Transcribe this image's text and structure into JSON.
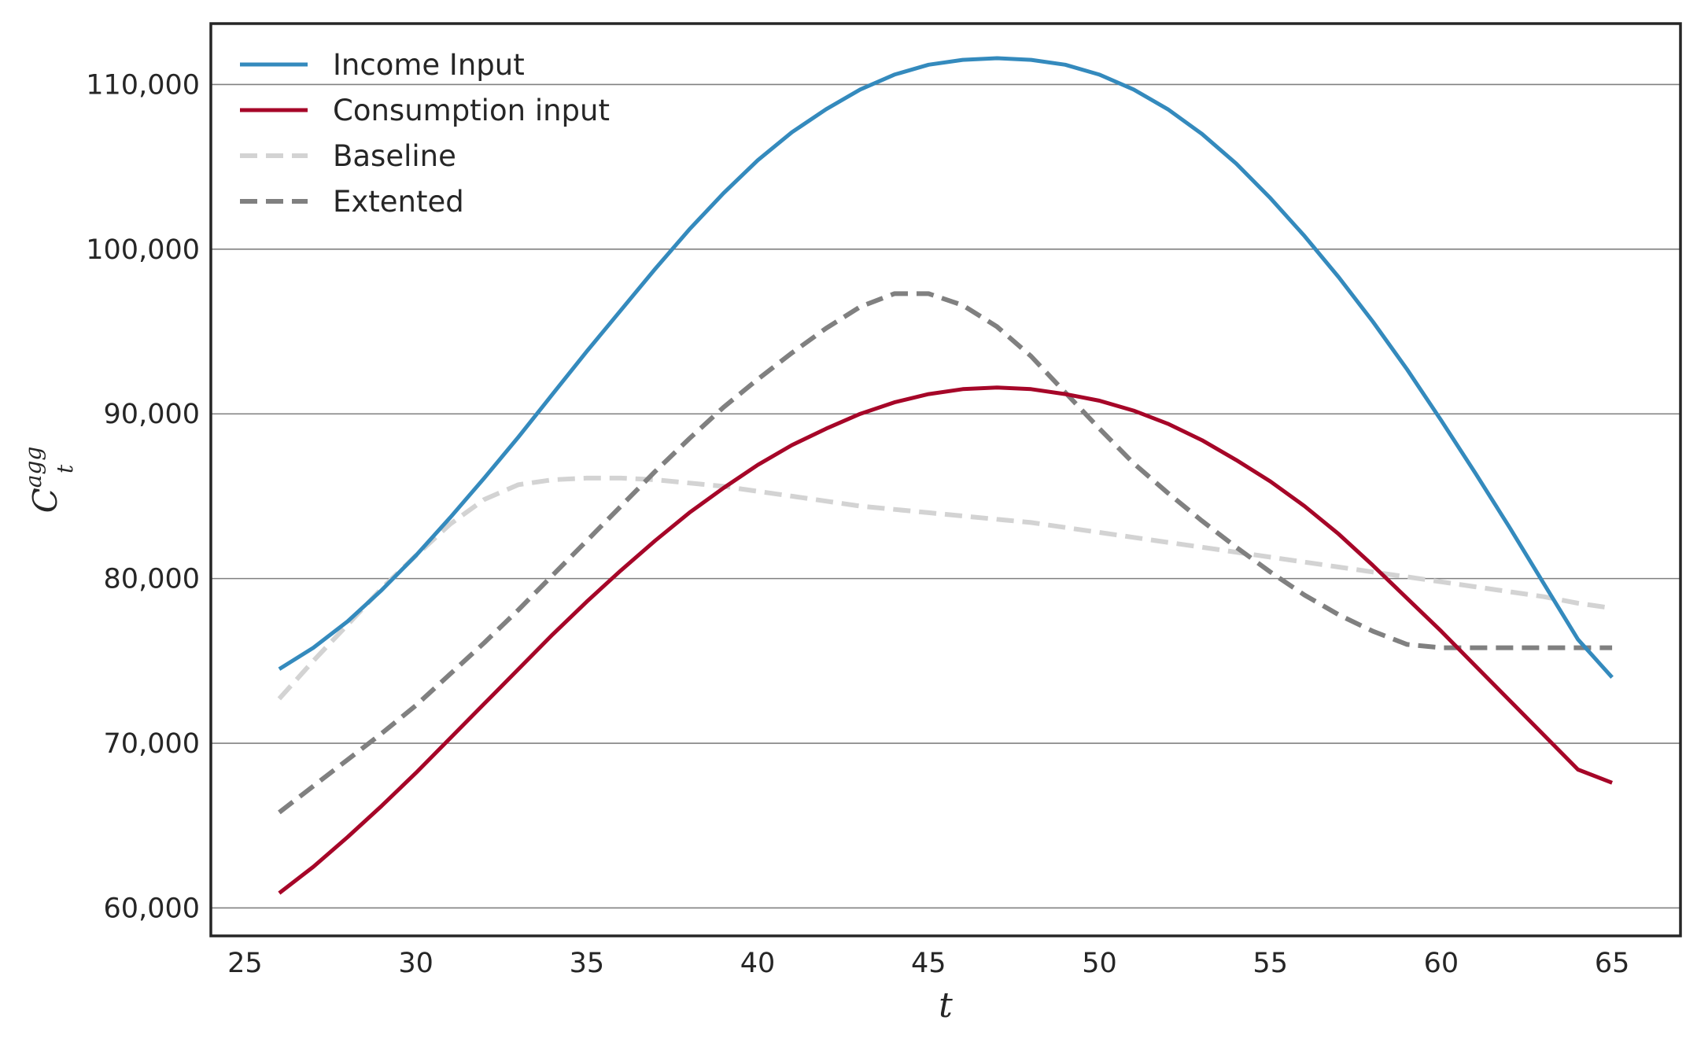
{
  "chart_data": {
    "type": "line",
    "title": "",
    "xlabel": "t",
    "ylabel_main": "C",
    "ylabel_sub": "t",
    "ylabel_sup": "agg",
    "xlim": [
      24,
      67
    ],
    "ylim": [
      58300,
      113700
    ],
    "xticks": [
      25,
      30,
      35,
      40,
      45,
      50,
      55,
      60,
      65
    ],
    "xtick_labels": [
      "25",
      "30",
      "35",
      "40",
      "45",
      "50",
      "55",
      "60",
      "65"
    ],
    "yticks": [
      60000,
      70000,
      80000,
      90000,
      100000,
      110000
    ],
    "ytick_labels": [
      "60,000",
      "70,000",
      "80,000",
      "90,000",
      "100,000",
      "110,000"
    ],
    "grid": "horizontal",
    "legend_position": "top-left",
    "x": [
      26,
      27,
      28,
      29,
      30,
      31,
      32,
      33,
      34,
      35,
      36,
      37,
      38,
      39,
      40,
      41,
      42,
      43,
      44,
      45,
      46,
      47,
      48,
      49,
      50,
      51,
      52,
      53,
      54,
      55,
      56,
      57,
      58,
      59,
      60,
      61,
      62,
      63,
      64,
      65
    ],
    "series": [
      {
        "name": "Income Input",
        "color": "#348abd",
        "style": "solid",
        "values": [
          74500,
          75800,
          77400,
          79300,
          81400,
          83700,
          86100,
          88600,
          91200,
          93800,
          96300,
          98800,
          101200,
          103400,
          105400,
          107100,
          108500,
          109700,
          110600,
          111200,
          111500,
          111600,
          111500,
          111200,
          110600,
          109700,
          108500,
          107000,
          105200,
          103100,
          100800,
          98300,
          95600,
          92700,
          89600,
          86400,
          83100,
          79700,
          76300,
          74000
        ]
      },
      {
        "name": "Consumption input",
        "color": "#a60628",
        "style": "solid",
        "values": [
          60900,
          62500,
          64300,
          66200,
          68200,
          70300,
          72400,
          74500,
          76600,
          78600,
          80500,
          82300,
          84000,
          85500,
          86900,
          88100,
          89100,
          90000,
          90700,
          91200,
          91500,
          91600,
          91500,
          91200,
          90800,
          90200,
          89400,
          88400,
          87200,
          85900,
          84400,
          82700,
          80800,
          78800,
          76800,
          74700,
          72600,
          70500,
          68400,
          67600
        ]
      },
      {
        "name": "Baseline",
        "color": "#d3d3d3",
        "style": "dashed",
        "values": [
          72700,
          75000,
          77200,
          79400,
          81400,
          83300,
          84800,
          85700,
          86000,
          86100,
          86100,
          86000,
          85800,
          85600,
          85300,
          85000,
          84700,
          84400,
          84200,
          84000,
          83800,
          83600,
          83400,
          83100,
          82800,
          82500,
          82200,
          81900,
          81600,
          81300,
          81000,
          80700,
          80400,
          80100,
          79800,
          79500,
          79200,
          78900,
          78500,
          78200
        ]
      },
      {
        "name": "Extented",
        "color": "#808080",
        "style": "dashed",
        "values": [
          65800,
          67400,
          69000,
          70600,
          72300,
          74200,
          76100,
          78100,
          80200,
          82300,
          84400,
          86500,
          88500,
          90400,
          92100,
          93700,
          95200,
          96500,
          97300,
          97300,
          96600,
          95300,
          93500,
          91300,
          89100,
          87000,
          85200,
          83500,
          81900,
          80400,
          79000,
          77800,
          76800,
          76000,
          75800,
          75800,
          75800,
          75800,
          75800,
          75800
        ]
      }
    ]
  }
}
